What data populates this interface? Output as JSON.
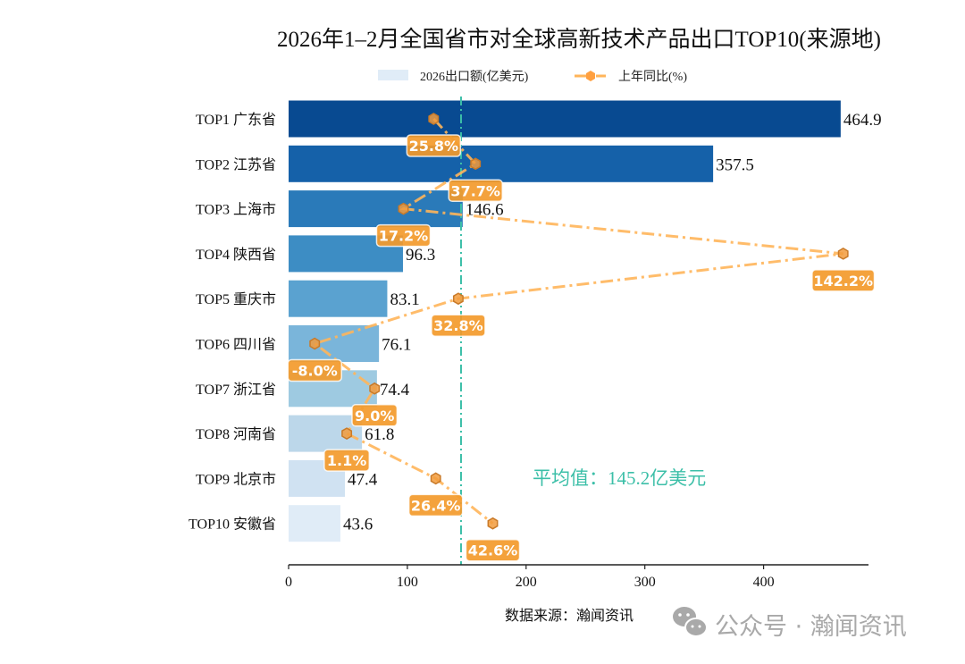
{
  "chart_data": {
    "type": "bar",
    "orientation": "horizontal",
    "title": "2026年1–2月全国省市对全球高新技术产品出口TOP10(来源地)",
    "categories": [
      "TOP1 广东省",
      "TOP2 江苏省",
      "TOP3 上海市",
      "TOP4 陕西省",
      "TOP5 重庆市",
      "TOP6 四川省",
      "TOP7 浙江省",
      "TOP8 河南省",
      "TOP9 北京市",
      "TOP10 安徽省"
    ],
    "series": [
      {
        "name": "2026出口额(亿美元)",
        "type": "bar",
        "values": [
          464.9,
          357.5,
          146.6,
          96.3,
          83.1,
          76.1,
          74.4,
          61.8,
          47.4,
          43.6
        ],
        "colors": [
          "#084a91",
          "#1561a9",
          "#2a7ab9",
          "#3d8dc4",
          "#5aa2d0",
          "#7ab5da",
          "#9ecae1",
          "#bcd7ea",
          "#d0e2f2",
          "#e0ecf7"
        ]
      },
      {
        "name": "上年同比(%)",
        "type": "line",
        "values": [
          25.8,
          37.7,
          17.2,
          142.2,
          32.8,
          -8.0,
          9.0,
          1.1,
          26.4,
          42.6
        ],
        "labels": [
          "25.8%",
          "37.7%",
          "17.2%",
          "142.2%",
          "32.8%",
          "-8.0%",
          "9.0%",
          "1.1%",
          "26.4%",
          "42.6%"
        ],
        "color": "#ffb55a",
        "style": "dash-dot",
        "marker": "hexagon"
      }
    ],
    "bar_labels": [
      "464.9",
      "357.5",
      "146.6",
      "96.3",
      "83.1",
      "76.1",
      "74.4",
      "61.8",
      "47.4",
      "43.6"
    ],
    "xlim": [
      0,
      490
    ],
    "xticks": [
      "0",
      "100",
      "200",
      "300",
      "400"
    ],
    "xtick_values": [
      0,
      100,
      200,
      300,
      400
    ],
    "average": {
      "value": 145.2,
      "label": "平均值：145.2亿美元",
      "color": "#3cbfa8"
    },
    "legend": {
      "placement": "top-center",
      "entries": [
        "2026出口额(亿美元)",
        "上年同比(%)"
      ]
    },
    "grid": false
  },
  "source": "数据来源：瀚闻资讯",
  "watermark": "公众号 · 瀚闻资讯"
}
